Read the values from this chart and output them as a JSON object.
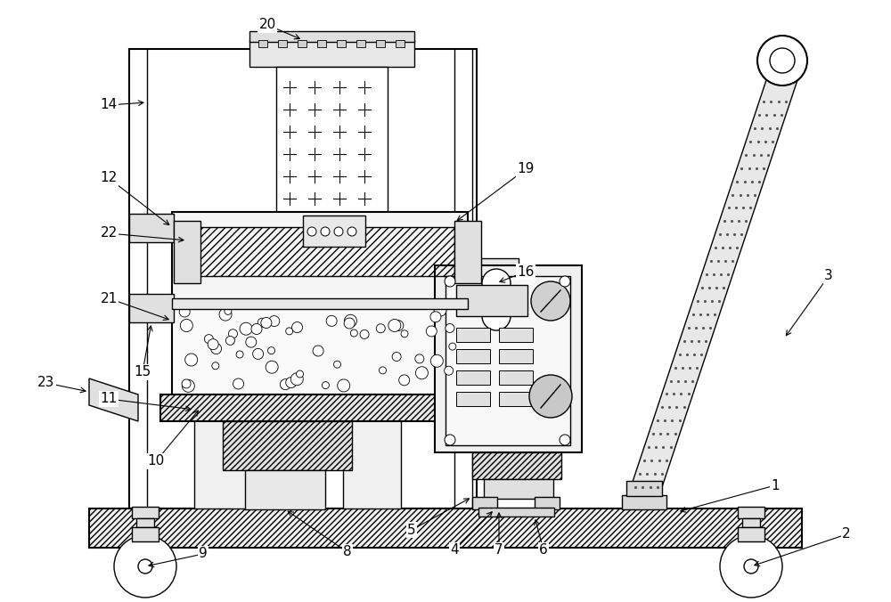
{
  "bg_color": "#ffffff",
  "lc": "#000000",
  "fig_width": 10.0,
  "fig_height": 6.76,
  "dpi": 100
}
